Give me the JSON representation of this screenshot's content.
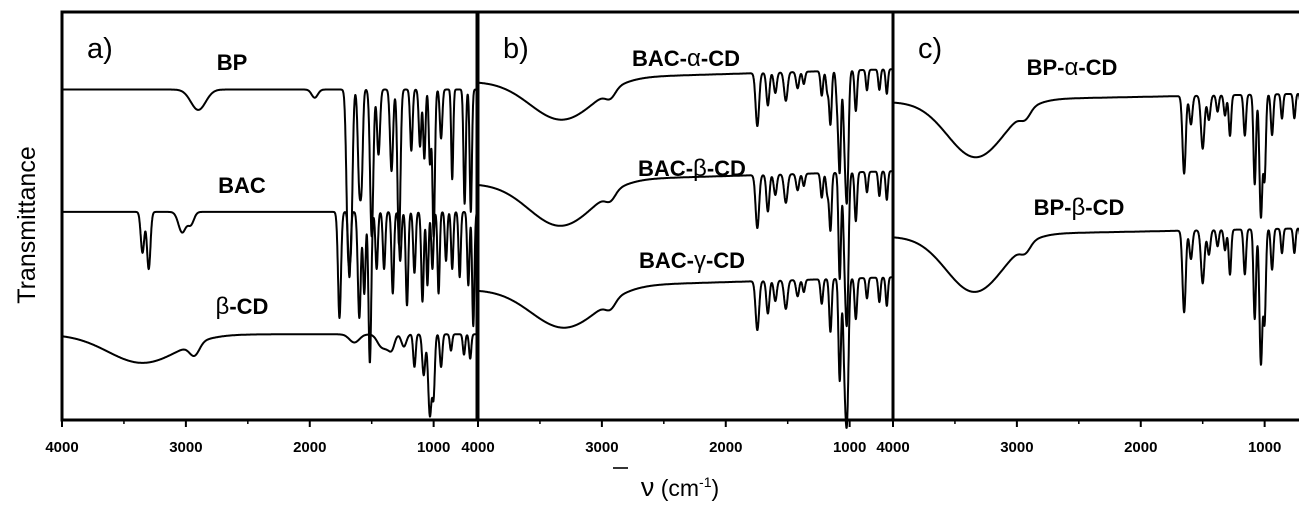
{
  "figure": {
    "ylabel": "Transmittance",
    "xlabel_symbol": "ν",
    "xlabel_unit_open": " (cm",
    "xlabel_unit_sup": "-1",
    "xlabel_unit_close": ")"
  },
  "chart_data": [
    {
      "type": "line",
      "panel": "a)",
      "xlim": [
        4000,
        650
      ],
      "x_ticks": [
        4000,
        3000,
        2000,
        1000
      ],
      "x_tick_labels": [
        "4000",
        "3000",
        "2000",
        "1000"
      ],
      "series": [
        {
          "name": "BP",
          "label_parts": [
            "BP"
          ],
          "baseline": 0.81,
          "drift": 0,
          "bands": [
            [
              2900,
              0.05,
              60
            ],
            [
              1960,
              0.02,
              25
            ],
            [
              1690,
              0.38,
              14
            ],
            [
              1665,
              0.3,
              12
            ],
            [
              1600,
              0.23,
              12
            ],
            [
              1580,
              0.18,
              10
            ],
            [
              1500,
              0.36,
              13
            ],
            [
              1445,
              0.16,
              12
            ],
            [
              1340,
              0.2,
              12
            ],
            [
              1280,
              0.38,
              12
            ],
            [
              1180,
              0.15,
              10
            ],
            [
              1110,
              0.14,
              10
            ],
            [
              1075,
              0.17,
              9
            ],
            [
              1030,
              0.18,
              9
            ],
            [
              1000,
              0.36,
              10
            ],
            [
              940,
              0.12,
              10
            ],
            [
              850,
              0.22,
              8
            ],
            [
              750,
              0.28,
              9
            ],
            [
              700,
              0.3,
              9
            ]
          ]
        },
        {
          "name": "BAC",
          "label_parts": [
            "BAC"
          ],
          "baseline": 0.51,
          "drift": 0,
          "bands": [
            [
              3350,
              0.1,
              14
            ],
            [
              3300,
              0.14,
              14
            ],
            [
              3030,
              0.05,
              30
            ],
            [
              2960,
              0.03,
              25
            ],
            [
              1760,
              0.26,
              12
            ],
            [
              1680,
              0.16,
              10
            ],
            [
              1600,
              0.26,
              12
            ],
            [
              1560,
              0.2,
              10
            ],
            [
              1515,
              0.37,
              11
            ],
            [
              1460,
              0.14,
              10
            ],
            [
              1400,
              0.14,
              10
            ],
            [
              1330,
              0.2,
              10
            ],
            [
              1270,
              0.12,
              10
            ],
            [
              1215,
              0.23,
              10
            ],
            [
              1155,
              0.15,
              10
            ],
            [
              1090,
              0.22,
              10
            ],
            [
              1050,
              0.18,
              9
            ],
            [
              1010,
              0.14,
              9
            ],
            [
              960,
              0.2,
              9
            ],
            [
              900,
              0.12,
              9
            ],
            [
              850,
              0.14,
              9
            ],
            [
              790,
              0.16,
              9
            ],
            [
              720,
              0.18,
              9
            ],
            [
              680,
              0.28,
              9
            ]
          ]
        },
        {
          "name": "β-CD",
          "label_parts": [
            "β",
            "-CD"
          ],
          "baseline": 0.21,
          "drift": 0,
          "bands": [
            [
              3350,
              0.07,
              280
            ],
            [
              2930,
              0.03,
              40
            ],
            [
              1640,
              0.02,
              40
            ],
            [
              1420,
              0.03,
              35
            ],
            [
              1370,
              0.02,
              25
            ],
            [
              1335,
              0.03,
              22
            ],
            [
              1240,
              0.03,
              20
            ],
            [
              1155,
              0.08,
              10
            ],
            [
              1080,
              0.1,
              12
            ],
            [
              1030,
              0.2,
              14
            ],
            [
              1000,
              0.14,
              10
            ],
            [
              940,
              0.08,
              10
            ],
            [
              860,
              0.04,
              9
            ],
            [
              755,
              0.05,
              9
            ],
            [
              705,
              0.06,
              9
            ]
          ]
        }
      ]
    },
    {
      "type": "line",
      "panel": "b)",
      "xlim": [
        4000,
        650
      ],
      "x_ticks": [
        4000,
        3000,
        2000,
        1000
      ],
      "x_tick_labels": [
        "4000",
        "3000",
        "2000",
        "1000"
      ],
      "series": [
        {
          "name": "BAC-α-CD",
          "label_parts": [
            "BAC-",
            "α",
            "-CD"
          ],
          "baseline": 0.83,
          "drift": 0.03,
          "bands": [
            [
              3320,
              0.1,
              260
            ],
            [
              2930,
              0.02,
              40
            ],
            [
              1745,
              0.13,
              14
            ],
            [
              1660,
              0.08,
              12
            ],
            [
              1600,
              0.05,
              12
            ],
            [
              1515,
              0.07,
              14
            ],
            [
              1420,
              0.04,
              12
            ],
            [
              1370,
              0.03,
              10
            ],
            [
              1225,
              0.06,
              10
            ],
            [
              1180,
              0.05,
              10
            ],
            [
              1155,
              0.13,
              10
            ],
            [
              1100,
              0.08,
              10
            ],
            [
              1080,
              0.24,
              10
            ],
            [
              1040,
              0.15,
              12
            ],
            [
              1020,
              0.28,
              12
            ],
            [
              950,
              0.1,
              10
            ],
            [
              860,
              0.05,
              9
            ],
            [
              760,
              0.05,
              9
            ],
            [
              700,
              0.06,
              9
            ]
          ]
        },
        {
          "name": "BAC-β-CD",
          "label_parts": [
            "BAC-",
            "β",
            "-CD"
          ],
          "baseline": 0.58,
          "drift": 0.03,
          "bands": [
            [
              3330,
              0.11,
              260
            ],
            [
              2930,
              0.02,
              40
            ],
            [
              1745,
              0.13,
              14
            ],
            [
              1660,
              0.09,
              12
            ],
            [
              1600,
              0.05,
              12
            ],
            [
              1515,
              0.07,
              14
            ],
            [
              1420,
              0.04,
              12
            ],
            [
              1370,
              0.03,
              10
            ],
            [
              1225,
              0.06,
              10
            ],
            [
              1180,
              0.05,
              10
            ],
            [
              1155,
              0.14,
              10
            ],
            [
              1080,
              0.26,
              10
            ],
            [
              1040,
              0.18,
              12
            ],
            [
              1020,
              0.32,
              12
            ],
            [
              950,
              0.12,
              10
            ],
            [
              860,
              0.05,
              9
            ],
            [
              760,
              0.06,
              9
            ],
            [
              700,
              0.07,
              9
            ]
          ]
        },
        {
          "name": "BAC-γ-CD",
          "label_parts": [
            "BAC-",
            "γ",
            "-CD"
          ],
          "baseline": 0.32,
          "drift": 0.03,
          "bands": [
            [
              3300,
              0.1,
              270
            ],
            [
              2930,
              0.02,
              40
            ],
            [
              1745,
              0.12,
              14
            ],
            [
              1660,
              0.08,
              12
            ],
            [
              1600,
              0.05,
              12
            ],
            [
              1515,
              0.07,
              14
            ],
            [
              1420,
              0.04,
              12
            ],
            [
              1370,
              0.03,
              10
            ],
            [
              1225,
              0.06,
              10
            ],
            [
              1155,
              0.13,
              10
            ],
            [
              1080,
              0.25,
              10
            ],
            [
              1040,
              0.2,
              12
            ],
            [
              1020,
              0.3,
              12
            ],
            [
              950,
              0.1,
              10
            ],
            [
              860,
              0.05,
              9
            ],
            [
              760,
              0.06,
              9
            ],
            [
              700,
              0.07,
              9
            ]
          ]
        }
      ]
    },
    {
      "type": "line",
      "panel": "c)",
      "xlim": [
        4000,
        650
      ],
      "x_ticks": [
        4000,
        3000,
        2000,
        1000
      ],
      "x_tick_labels": [
        "4000",
        "3000",
        "2000",
        "1000"
      ],
      "series": [
        {
          "name": "BP-α-CD",
          "label_parts": [
            "BP-",
            "α",
            "-CD"
          ],
          "baseline": 0.78,
          "drift": 0.02,
          "bands": [
            [
              3330,
              0.14,
              230
            ],
            [
              2930,
              0.02,
              40
            ],
            [
              1650,
              0.19,
              13
            ],
            [
              1595,
              0.07,
              12
            ],
            [
              1500,
              0.13,
              14
            ],
            [
              1450,
              0.06,
              12
            ],
            [
              1380,
              0.04,
              10
            ],
            [
              1320,
              0.05,
              10
            ],
            [
              1280,
              0.1,
              10
            ],
            [
              1160,
              0.1,
              10
            ],
            [
              1080,
              0.22,
              10
            ],
            [
              1030,
              0.3,
              12
            ],
            [
              1000,
              0.2,
              10
            ],
            [
              940,
              0.1,
              10
            ],
            [
              860,
              0.06,
              9
            ],
            [
              760,
              0.06,
              9
            ],
            [
              700,
              0.07,
              9
            ]
          ]
        },
        {
          "name": "BP-β-CD",
          "label_parts": [
            "BP-",
            "β",
            "-CD"
          ],
          "baseline": 0.45,
          "drift": 0.02,
          "bands": [
            [
              3340,
              0.14,
              230
            ],
            [
              2930,
              0.02,
              40
            ],
            [
              1650,
              0.2,
              13
            ],
            [
              1595,
              0.07,
              12
            ],
            [
              1500,
              0.13,
              14
            ],
            [
              1450,
              0.06,
              12
            ],
            [
              1380,
              0.04,
              10
            ],
            [
              1320,
              0.05,
              10
            ],
            [
              1280,
              0.11,
              10
            ],
            [
              1160,
              0.11,
              10
            ],
            [
              1080,
              0.22,
              10
            ],
            [
              1030,
              0.33,
              12
            ],
            [
              1000,
              0.22,
              10
            ],
            [
              940,
              0.1,
              10
            ],
            [
              860,
              0.06,
              9
            ],
            [
              760,
              0.06,
              9
            ],
            [
              700,
              0.07,
              9
            ]
          ]
        }
      ]
    }
  ]
}
